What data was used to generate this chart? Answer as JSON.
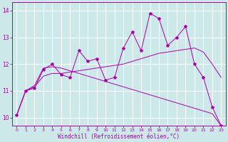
{
  "background_color": "#cce8e8",
  "grid_color": "#ffffff",
  "line_color": "#aa00aa",
  "xlabel": "Windchill (Refroidissement éolien,°C)",
  "xlim": [
    -0.5,
    23.5
  ],
  "ylim": [
    9.7,
    14.3
  ],
  "yticks": [
    10,
    11,
    12,
    13,
    14
  ],
  "xticks": [
    0,
    1,
    2,
    3,
    4,
    5,
    6,
    7,
    8,
    9,
    10,
    11,
    12,
    13,
    14,
    15,
    16,
    17,
    18,
    19,
    20,
    21,
    22,
    23
  ],
  "series1_x": [
    0,
    1,
    2,
    3,
    4,
    5,
    6,
    7,
    8,
    9,
    10,
    11,
    12,
    13,
    14,
    15,
    16,
    17,
    18,
    19,
    20,
    21,
    22,
    23
  ],
  "series1_y": [
    10.1,
    11.0,
    11.1,
    11.8,
    12.0,
    11.6,
    11.5,
    12.5,
    12.1,
    12.2,
    11.4,
    11.5,
    12.6,
    13.2,
    12.5,
    13.9,
    13.7,
    12.7,
    13.0,
    13.4,
    12.0,
    11.5,
    10.4,
    9.7
  ],
  "series2_x": [
    0,
    1,
    2,
    3,
    4,
    5,
    6,
    7,
    8,
    9,
    10,
    11,
    12,
    13,
    14,
    15,
    16,
    17,
    18,
    19,
    20,
    21,
    22,
    23
  ],
  "series2_y": [
    10.1,
    11.0,
    11.15,
    11.55,
    11.65,
    11.65,
    11.7,
    11.75,
    11.8,
    11.85,
    11.9,
    11.95,
    12.0,
    12.1,
    12.2,
    12.3,
    12.4,
    12.45,
    12.5,
    12.55,
    12.6,
    12.45,
    12.0,
    11.5
  ],
  "series3_x": [
    0,
    1,
    2,
    3,
    4,
    5,
    6,
    7,
    8,
    9,
    10,
    11,
    12,
    13,
    14,
    15,
    16,
    17,
    18,
    19,
    20,
    21,
    22,
    23
  ],
  "series3_y": [
    10.1,
    11.0,
    11.2,
    11.85,
    11.9,
    11.85,
    11.75,
    11.65,
    11.55,
    11.45,
    11.35,
    11.25,
    11.15,
    11.05,
    10.95,
    10.85,
    10.75,
    10.65,
    10.55,
    10.45,
    10.35,
    10.25,
    10.15,
    9.7
  ],
  "xtick_fontsize": 4.5,
  "ytick_fontsize": 5.5,
  "xlabel_fontsize": 5.5,
  "marker": "*",
  "marker_size": 3
}
